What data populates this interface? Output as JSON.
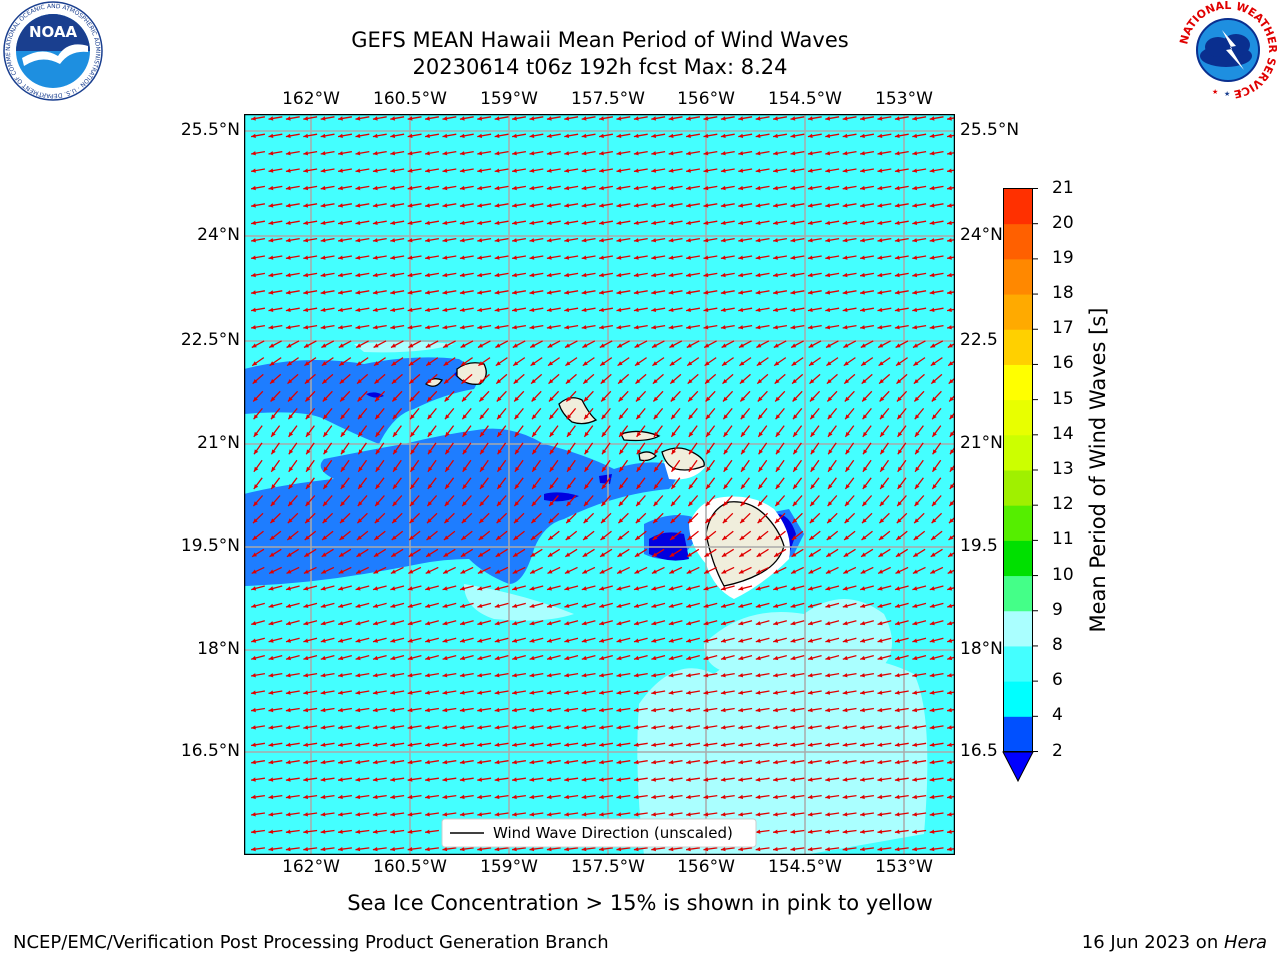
{
  "header": {
    "title_line1": "GEFS MEAN Hawaii Mean Period of Wind Waves",
    "title_line2": "20230614 t06z 192h fcst   Max: 8.24"
  },
  "logos": {
    "noaa": {
      "text": "NOAA",
      "ring_text": "NATIONAL OCEANIC AND ATMOSPHERIC ADMINISTRATION · U.S. DEPARTMENT OF COMMERCE",
      "icon": "noaa-logo-icon"
    },
    "nws": {
      "ring_text": "NATIONAL WEATHER SERVICE",
      "icon": "nws-logo-icon"
    }
  },
  "map": {
    "lon_labels": [
      "162°W",
      "160.5°W",
      "159°W",
      "157.5°W",
      "156°W",
      "154.5°W",
      "153°W"
    ],
    "lat_labels": [
      "25.5°N",
      "24°N",
      "22.5°N",
      "21°N",
      "19.5°N",
      "18°N",
      "16.5°N"
    ],
    "lat_labels_right": [
      "25.5°N",
      "24°N",
      "22.5",
      "21°N",
      "19.5",
      "18°N",
      "16.5"
    ],
    "legend": "Wind Wave Direction (unscaled)",
    "colors": {
      "ocean_cyan": "#44ffff",
      "light_cyan": "#aaffff",
      "mid_blue": "#1e7dff",
      "dark_blue": "#0000e0",
      "land": "#f0eedc",
      "arrow": "#e00000"
    }
  },
  "colorbar": {
    "label": "Mean Period of Wind Waves [s]",
    "ticks": [
      "2",
      "4",
      "6",
      "8",
      "9",
      "10",
      "11",
      "12",
      "13",
      "14",
      "15",
      "16",
      "17",
      "18",
      "19",
      "20",
      "21"
    ],
    "colors": [
      "#0050ff",
      "#00ffff",
      "#44ffff",
      "#aaffff",
      "#44ff88",
      "#00e000",
      "#55ee00",
      "#a0f000",
      "#ccff00",
      "#e8ff00",
      "#ffff00",
      "#ffd000",
      "#ffaa00",
      "#ff8800",
      "#ff6000",
      "#ff3000",
      "#ff0000"
    ],
    "under_color": "#0000ff"
  },
  "footer": {
    "note": "Sea Ice Concentration > 15% is shown in pink to yellow",
    "left": "NCEP/EMC/Verification Post Processing Product Generation Branch",
    "right_date": "16 Jun 2023 on ",
    "right_host": "Hera"
  }
}
